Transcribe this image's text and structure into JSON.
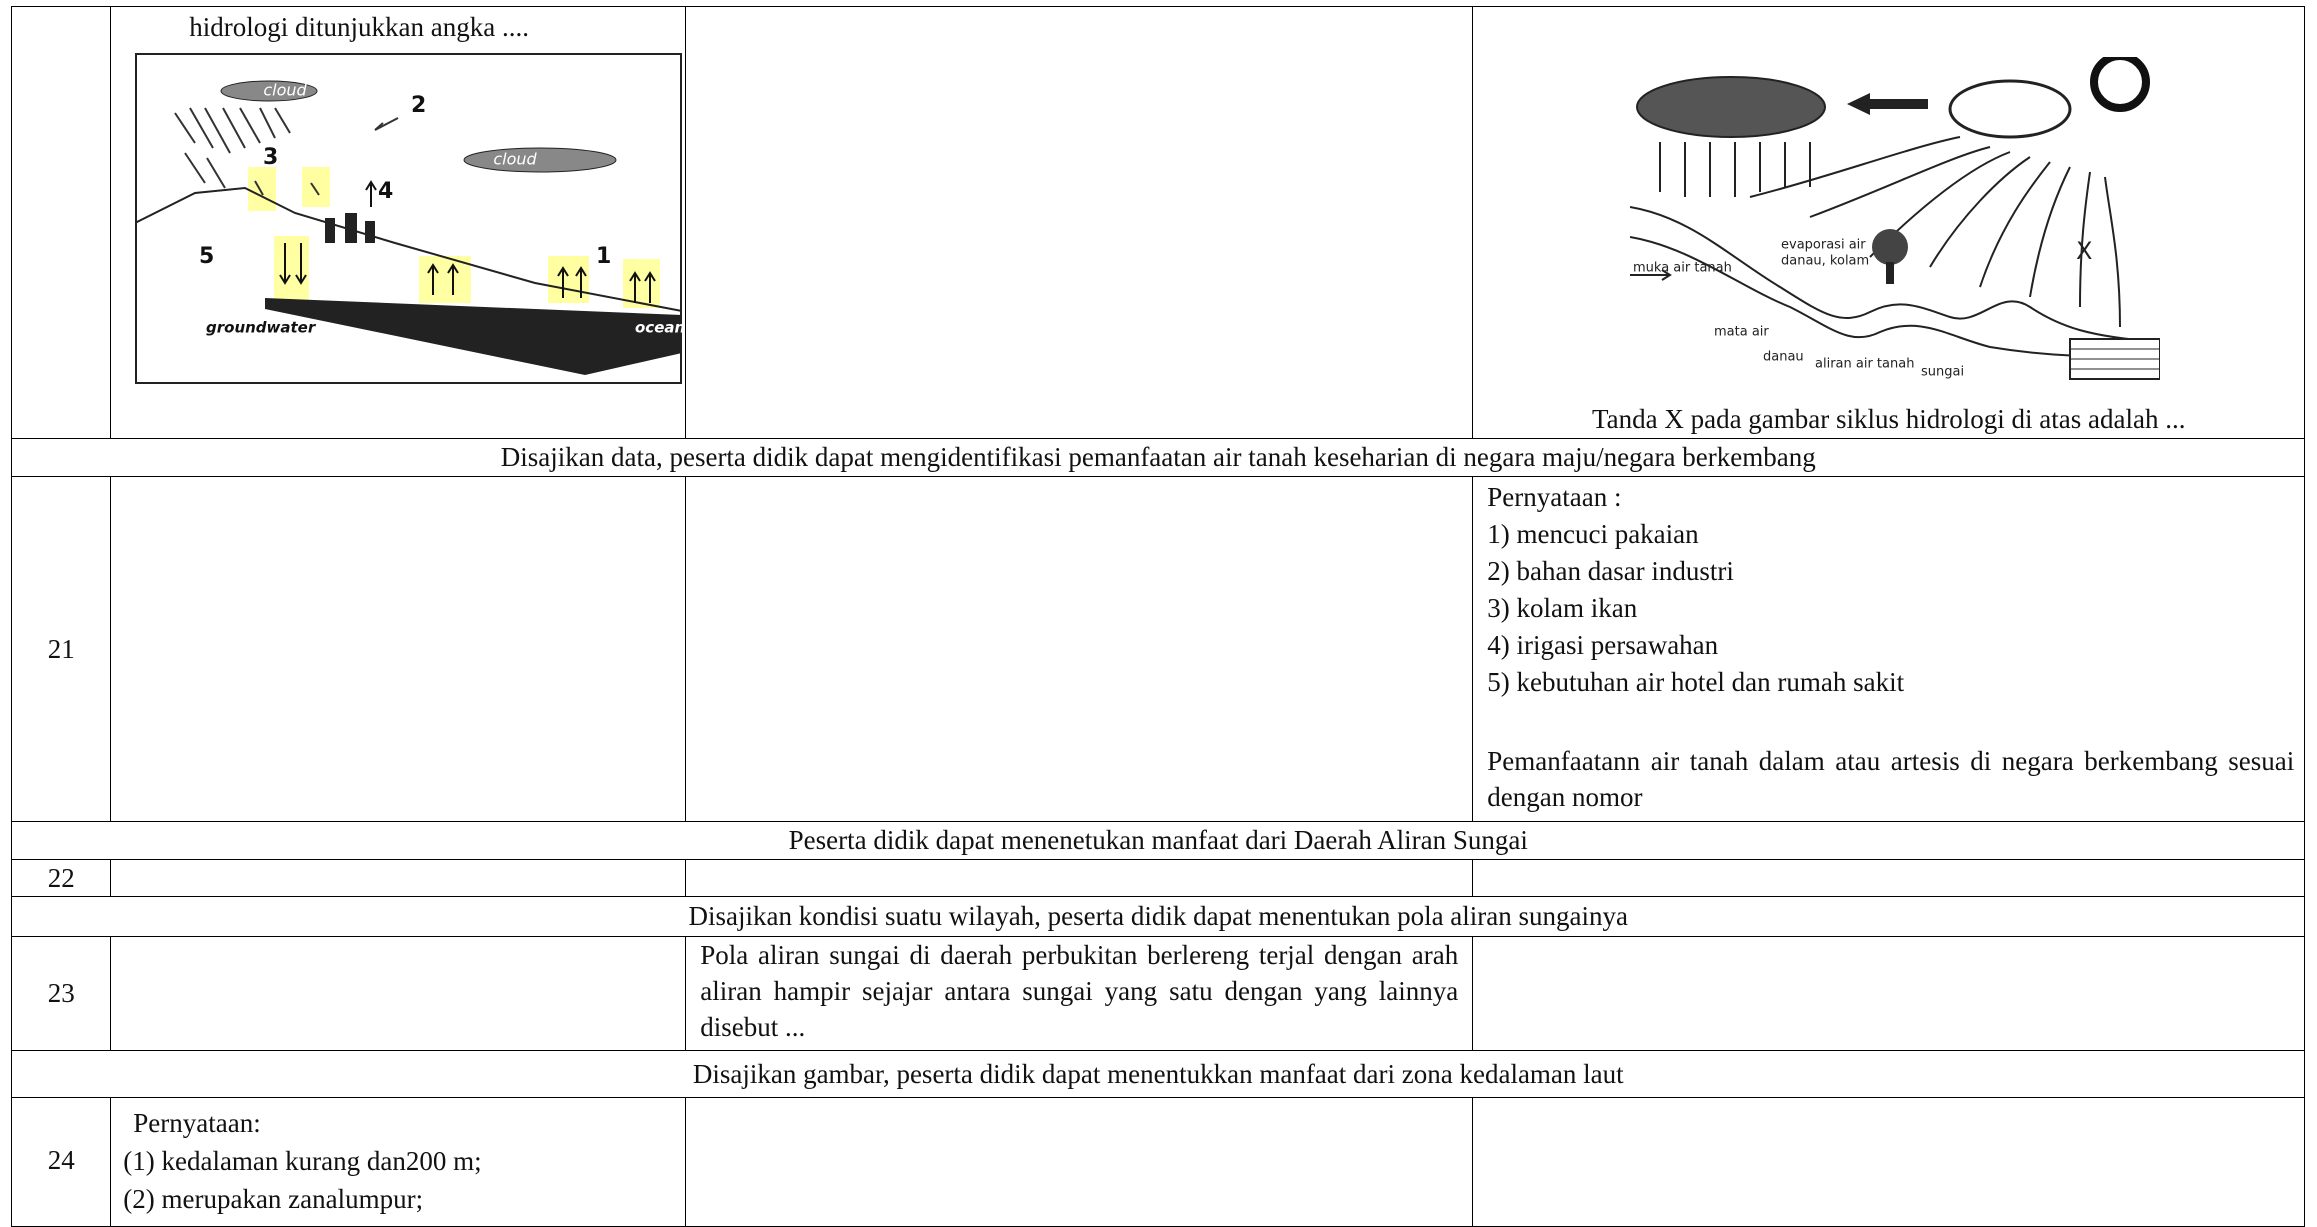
{
  "question_20": {
    "stem_end": "hidrologi  ditunjukkan  angka ....",
    "figure_a_labels": [
      "cloud",
      "cloud",
      "2",
      "3",
      "4",
      "5",
      "1",
      "groundwater",
      "ocean"
    ],
    "figure_b_labels": [
      "evaporasi air",
      "danau, kolam",
      "muka air tanah",
      "mata air",
      "danau",
      "aliran air tanah",
      "sungai",
      "X"
    ],
    "question": "Tanda X pada gambar siklus hidrologi di atas adalah ..."
  },
  "indicators": [
    "Disajikan data, peserta didik dapat mengidentifikasi pemanfaatan air tanah keseharian di negara maju/negara berkembang",
    "Peserta didik dapat menenetukan manfaat dari Daerah Aliran Sungai",
    "Disajikan kondisi suatu wilayah, peserta didik dapat menentukan pola aliran sungainya",
    "Disajikan gambar, peserta didik dapat menentukkan manfaat dari zona kedalaman laut"
  ],
  "question_21": {
    "number": "21",
    "statement_title": "Pernyataan :",
    "statements": [
      "1) mencuci pakaian",
      "2) bahan dasar industri",
      "3) kolam ikan",
      "4) irigasi persawahan",
      "5) kebutuhan air hotel dan rumah sakit"
    ],
    "question": "Pemanfaatann air tanah dalam atau artesis di negara berkembang sesuai dengan nomor"
  },
  "question_22": {
    "number": "22"
  },
  "question_23": {
    "number": "23",
    "question": "Pola aliran sungai di daerah perbukitan berlereng terjal dengan arah aliran hampir sejajar antara sungai yang satu dengan yang lainnya disebut ..."
  },
  "question_24": {
    "number": "24",
    "statement_title": "Pernyataan:",
    "statements": [
      "(1) kedalaman kurang dan200 m;",
      "(2) merupakan  zanalumpur;"
    ]
  }
}
